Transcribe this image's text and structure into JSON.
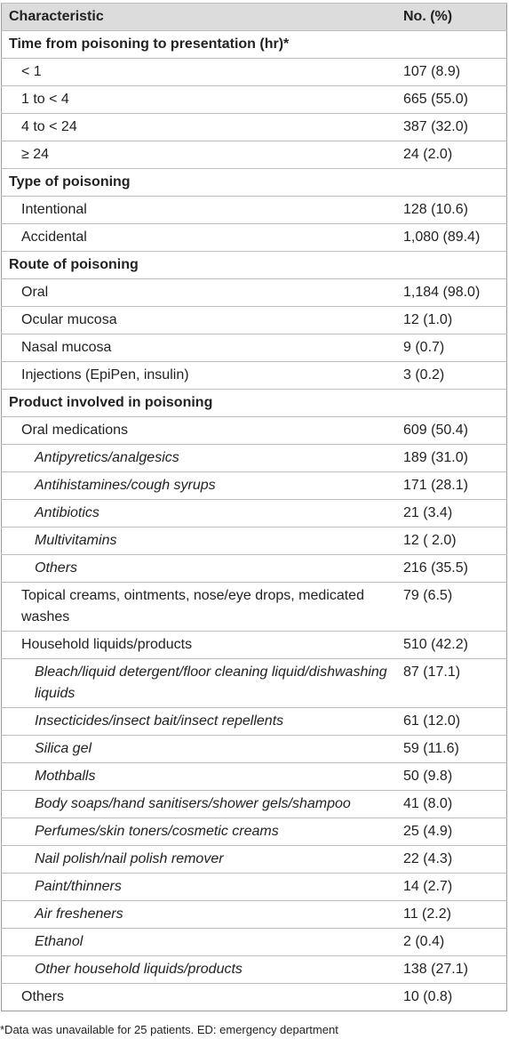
{
  "table": {
    "header": [
      "Characteristic",
      "No. (%)"
    ],
    "sections": [
      {
        "title": "Time from poisoning to presentation (hr)*",
        "rows": [
          {
            "cells": [
              "< 1",
              "107 (8.9)"
            ]
          },
          {
            "cells": [
              "1 to < 4",
              "665 (55.0)"
            ]
          },
          {
            "cells": [
              "4 to < 24",
              "387 (32.0)"
            ]
          },
          {
            "cells": [
              "≥ 24",
              "24 (2.0)"
            ]
          }
        ]
      },
      {
        "title": "Type of poisoning",
        "rows": [
          {
            "cells": [
              "Intentional",
              "128 (10.6)"
            ]
          },
          {
            "cells": [
              "Accidental",
              "1,080 (89.4)"
            ]
          }
        ]
      },
      {
        "title": "Route of poisoning",
        "rows": [
          {
            "cells": [
              "Oral",
              "1,184 (98.0)"
            ]
          },
          {
            "cells": [
              "Ocular mucosa",
              "12 (1.0)"
            ]
          },
          {
            "cells": [
              "Nasal mucosa",
              "9 (0.7)"
            ]
          },
          {
            "cells": [
              "Injections (EpiPen, insulin)",
              "3 (0.2)"
            ]
          }
        ]
      },
      {
        "title": "Product involved in poisoning",
        "rows": [
          {
            "cells": [
              "Oral medications",
              "609 (50.4)"
            ],
            "items": [
              {
                "cells": [
                  "Antipyretics/analgesics",
                  "189 (31.0)"
                ]
              },
              {
                "cells": [
                  "Antihistamines/cough syrups",
                  "171 (28.1)"
                ]
              },
              {
                "cells": [
                  "Antibiotics",
                  "21 (3.4)"
                ]
              },
              {
                "cells": [
                  "Multivitamins",
                  "12 ( 2.0)"
                ]
              },
              {
                "cells": [
                  "Others",
                  "216 (35.5)"
                ]
              }
            ]
          },
          {
            "cells": [
              "Topical creams, ointments, nose/eye drops, medicated washes",
              "79 (6.5)"
            ]
          },
          {
            "cells": [
              "Household liquids/products",
              "510 (42.2)"
            ],
            "items": [
              {
                "cells": [
                  "Bleach/liquid detergent/floor cleaning liquid/dishwashing liquids",
                  "87 (17.1)"
                ]
              },
              {
                "cells": [
                  "Insecticides/insect bait/insect repellents",
                  "61 (12.0)"
                ]
              },
              {
                "cells": [
                  "Silica gel",
                  "59 (11.6)"
                ]
              },
              {
                "cells": [
                  "Mothballs",
                  "50 (9.8)"
                ]
              },
              {
                "cells": [
                  "Body soaps/hand sanitisers/shower gels/shampoo",
                  "41 (8.0)"
                ]
              },
              {
                "cells": [
                  "Perfumes/skin toners/cosmetic creams",
                  "25 (4.9)"
                ]
              },
              {
                "cells": [
                  "Nail polish/nail polish remover",
                  "22 (4.3)"
                ]
              },
              {
                "cells": [
                  "Paint/thinners",
                  "14 (2.7)"
                ]
              },
              {
                "cells": [
                  "Air fresheners",
                  "11 (2.2)"
                ]
              },
              {
                "cells": [
                  "Ethanol",
                  "2 (0.4)"
                ]
              },
              {
                "cells": [
                  "Other household liquids/products",
                  "138 (27.1)"
                ]
              }
            ]
          },
          {
            "cells": [
              "Others",
              "10 (0.8)"
            ]
          }
        ]
      }
    ]
  },
  "footnote": "*Data was unavailable for 25 patients. ED: emergency department"
}
